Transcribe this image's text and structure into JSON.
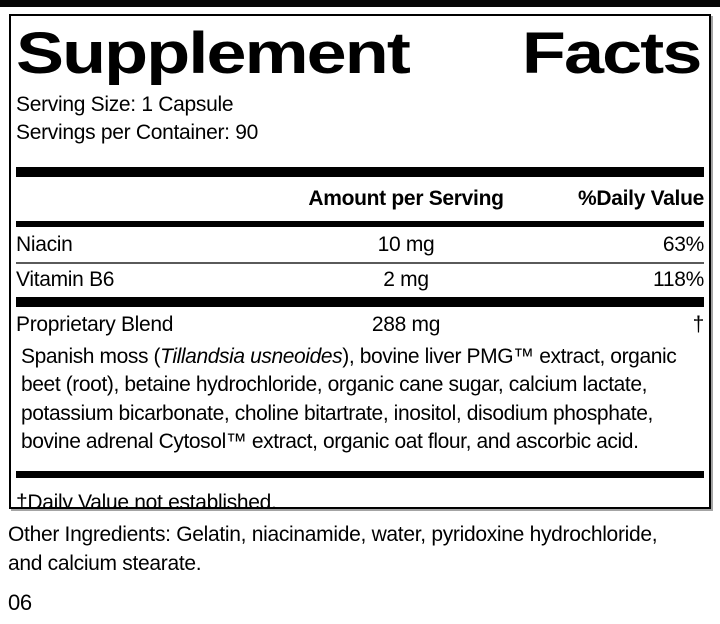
{
  "label": {
    "title": {
      "word1": "Supplement",
      "word2": "Facts"
    },
    "serving_size": "Serving Size: 1 Capsule",
    "servings_per_container": "Servings per Container: 90",
    "columns": {
      "amount_header": "Amount per Serving",
      "daily_value_header": "%Daily Value"
    },
    "rows": [
      {
        "name": "Niacin",
        "amount": "10 mg",
        "dv": "63%"
      },
      {
        "name": "Vitamin B6",
        "amount": "2 mg",
        "dv": "118%"
      },
      {
        "name": "Proprietary Blend",
        "amount": "288 mg",
        "dv": "†"
      }
    ],
    "blend": {
      "line1_prefix": "Spanish moss (",
      "line1_italic": "Tillandsia usneoides",
      "line1_suffix": "), bovine liver PMG™ extract, organic",
      "line2": "beet (root), betaine hydrochloride, organic cane sugar, calcium lactate,",
      "line3": "potassium bicarbonate, choline bitartrate, inositol, disodium phosphate,",
      "line4": "bovine adrenal Cytosol™ extract, organic oat flour, and ascorbic acid."
    },
    "footnote": "†Daily Value not established."
  },
  "other_ingredients": {
    "line1": "Other Ingredients: Gelatin, niacinamide, water, pyridoxine hydrochloride,",
    "line2": "and calcium stearate."
  },
  "code": "06",
  "colors": {
    "ink": "#000000",
    "background": "#ffffff"
  }
}
